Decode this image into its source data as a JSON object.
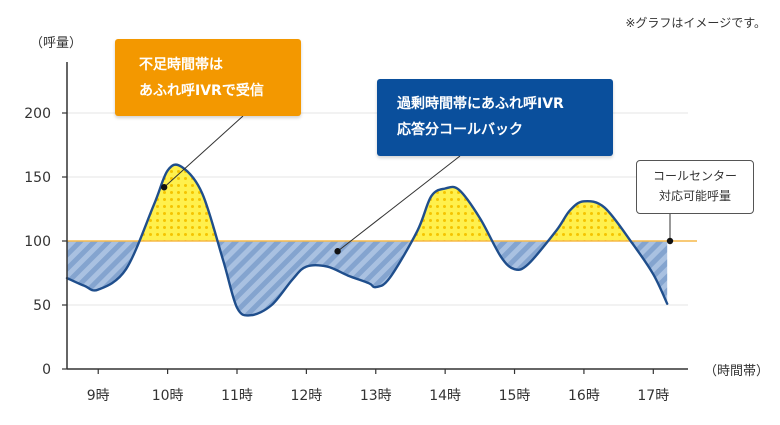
{
  "note": "※グラフはイメージです。",
  "chart_data": {
    "type": "area",
    "ylabel": "（呼量）",
    "xlabel": "（時間帯）",
    "ylim": [
      0,
      250
    ],
    "yticks": [
      0,
      50,
      100,
      150,
      200
    ],
    "categories": [
      "9時",
      "10時",
      "11時",
      "12時",
      "13時",
      "14時",
      "15時",
      "16時",
      "17時"
    ],
    "series": [
      {
        "name": "呼量",
        "x": [
          8.55,
          8.8,
          9.0,
          9.4,
          9.8,
          10.0,
          10.2,
          10.5,
          10.8,
          11.0,
          11.2,
          11.5,
          11.8,
          12.0,
          12.3,
          12.6,
          12.9,
          13.0,
          13.2,
          13.6,
          13.8,
          14.0,
          14.2,
          14.5,
          14.8,
          15.0,
          15.2,
          15.6,
          15.8,
          16.0,
          16.3,
          16.7,
          17.0,
          17.2
        ],
        "values": [
          71,
          65,
          62,
          78,
          128,
          155,
          158,
          137,
          85,
          48,
          42,
          50,
          70,
          80,
          80,
          73,
          67,
          64,
          71,
          108,
          135,
          141,
          140,
          118,
          88,
          78,
          82,
          108,
          124,
          131,
          126,
          98,
          74,
          51
        ]
      }
    ],
    "reference_line": {
      "value": 100,
      "label": [
        "コールセンター",
        "対応可能呼量"
      ]
    },
    "annotations": [
      {
        "lines": [
          "不足時間帯は",
          "あふれ呼IVRで受信"
        ],
        "x": 9.95,
        "y": 142,
        "color": "#f39800"
      },
      {
        "lines": [
          "過剰時間帯にあふれ呼IVR",
          "応答分コールバック"
        ],
        "x": 12.45,
        "y": 92,
        "color": "#0a4f9c"
      }
    ],
    "colors": {
      "line": "#1f4e8c",
      "surplus_fill": "#fff04d",
      "surplus_dots": "#f5c400",
      "shortage_fill": "#84a4cf",
      "shortage_stripe": "#a9c1e1",
      "reference": "#f5b94a"
    },
    "grid": true
  }
}
